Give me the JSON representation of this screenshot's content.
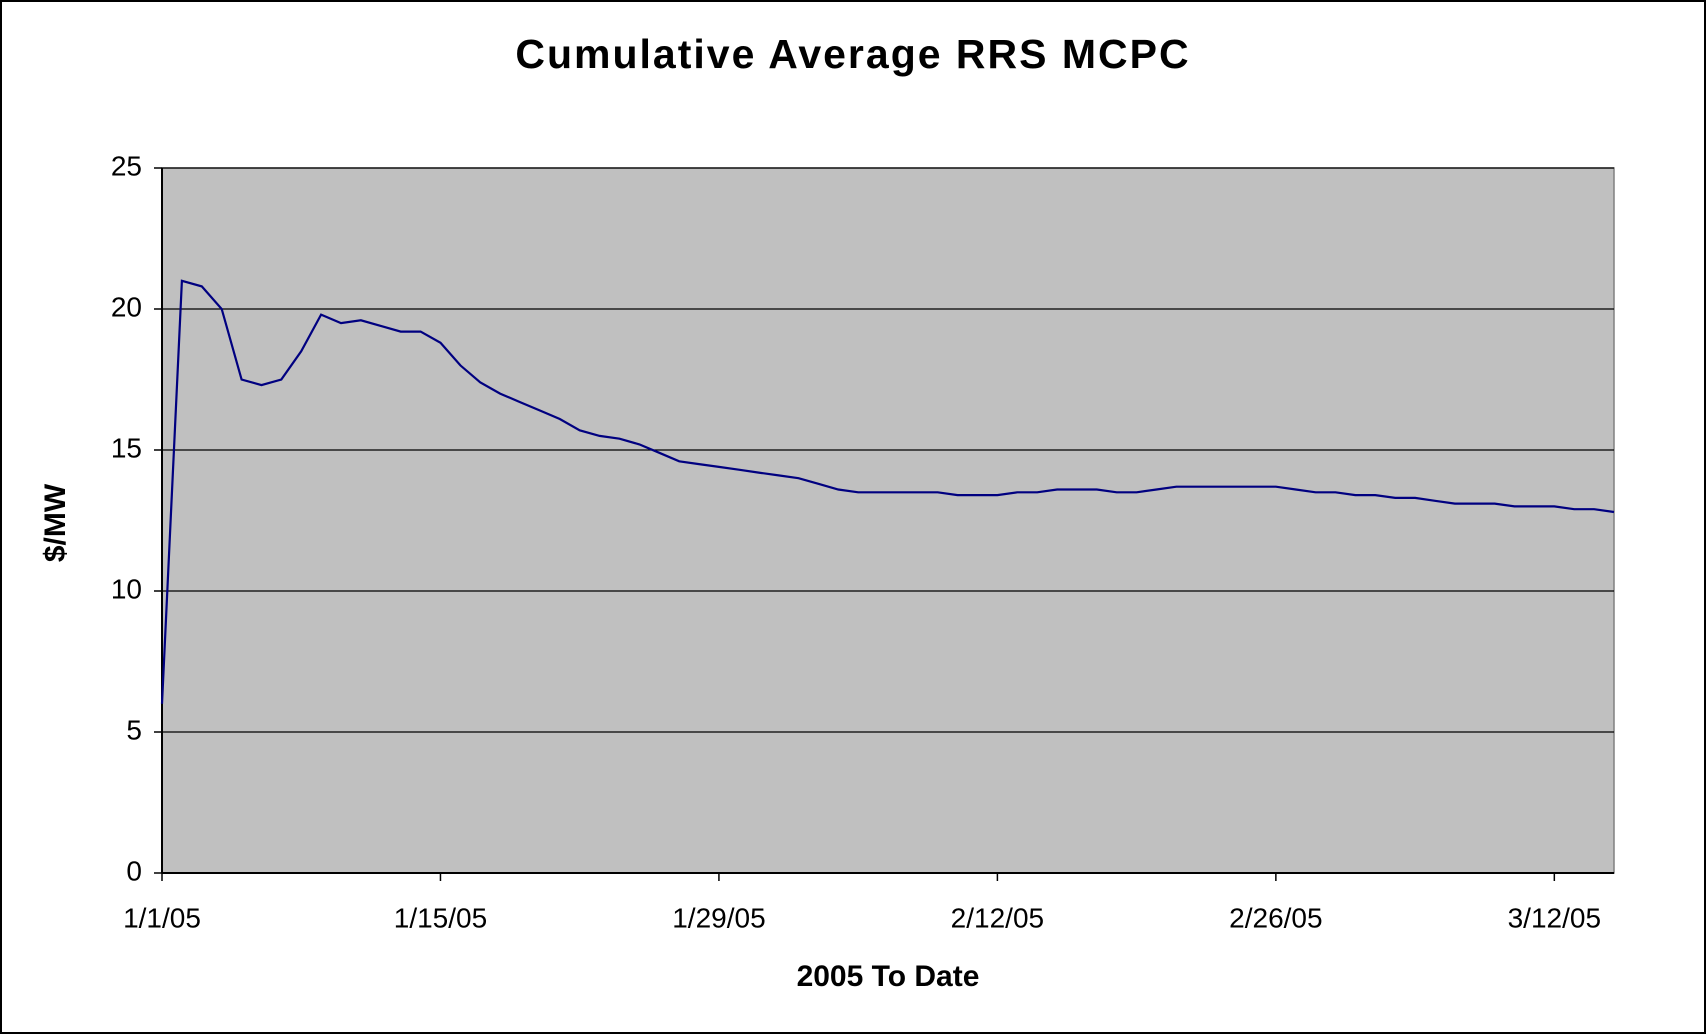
{
  "chart_data": {
    "type": "line",
    "title": "Cumulative Average RRS MCPC",
    "xlabel": "2005 To Date",
    "ylabel": "$/MW",
    "x": [
      "1/1/05",
      "1/2/05",
      "1/3/05",
      "1/4/05",
      "1/5/05",
      "1/6/05",
      "1/7/05",
      "1/8/05",
      "1/9/05",
      "1/10/05",
      "1/11/05",
      "1/12/05",
      "1/13/05",
      "1/14/05",
      "1/15/05",
      "1/16/05",
      "1/17/05",
      "1/18/05",
      "1/19/05",
      "1/20/05",
      "1/21/05",
      "1/22/05",
      "1/23/05",
      "1/24/05",
      "1/25/05",
      "1/26/05",
      "1/27/05",
      "1/28/05",
      "1/29/05",
      "1/30/05",
      "1/31/05",
      "2/1/05",
      "2/2/05",
      "2/3/05",
      "2/4/05",
      "2/5/05",
      "2/6/05",
      "2/7/05",
      "2/8/05",
      "2/9/05",
      "2/10/05",
      "2/11/05",
      "2/12/05",
      "2/13/05",
      "2/14/05",
      "2/15/05",
      "2/16/05",
      "2/17/05",
      "2/18/05",
      "2/19/05",
      "2/20/05",
      "2/21/05",
      "2/22/05",
      "2/23/05",
      "2/24/05",
      "2/25/05",
      "2/26/05",
      "2/27/05",
      "2/28/05",
      "3/1/05",
      "3/2/05",
      "3/3/05",
      "3/4/05",
      "3/5/05",
      "3/6/05",
      "3/7/05",
      "3/8/05",
      "3/9/05",
      "3/10/05",
      "3/11/05",
      "3/12/05",
      "3/13/05",
      "3/14/05",
      "3/15/05"
    ],
    "series": [
      {
        "name": "Cumulative Average RRS MCPC",
        "color": "#000080",
        "values": [
          6,
          21,
          20.8,
          20,
          17.5,
          17.3,
          17.5,
          18.5,
          19.8,
          19.5,
          19.6,
          19.4,
          19.2,
          19.2,
          18.8,
          18,
          17.4,
          17,
          16.7,
          16.4,
          16.1,
          15.7,
          15.5,
          15.4,
          15.2,
          14.9,
          14.6,
          14.5,
          14.4,
          14.3,
          14.2,
          14.1,
          14,
          13.8,
          13.6,
          13.5,
          13.5,
          13.5,
          13.5,
          13.5,
          13.4,
          13.4,
          13.4,
          13.5,
          13.5,
          13.6,
          13.6,
          13.6,
          13.5,
          13.5,
          13.6,
          13.7,
          13.7,
          13.7,
          13.7,
          13.7,
          13.7,
          13.6,
          13.5,
          13.5,
          13.4,
          13.4,
          13.3,
          13.3,
          13.2,
          13.1,
          13.1,
          13.1,
          13,
          13,
          13,
          12.9,
          12.9,
          12.8
        ]
      }
    ],
    "xlim": [
      "1/1/05",
      "3/15/05"
    ],
    "xticks": [
      "1/1/05",
      "1/15/05",
      "1/29/05",
      "2/12/05",
      "2/26/05",
      "3/12/05"
    ],
    "ylim": [
      0,
      25
    ],
    "yticks": [
      0,
      5,
      10,
      15,
      20,
      25
    ],
    "grid": true,
    "plot_background": "#c0c0c0"
  }
}
